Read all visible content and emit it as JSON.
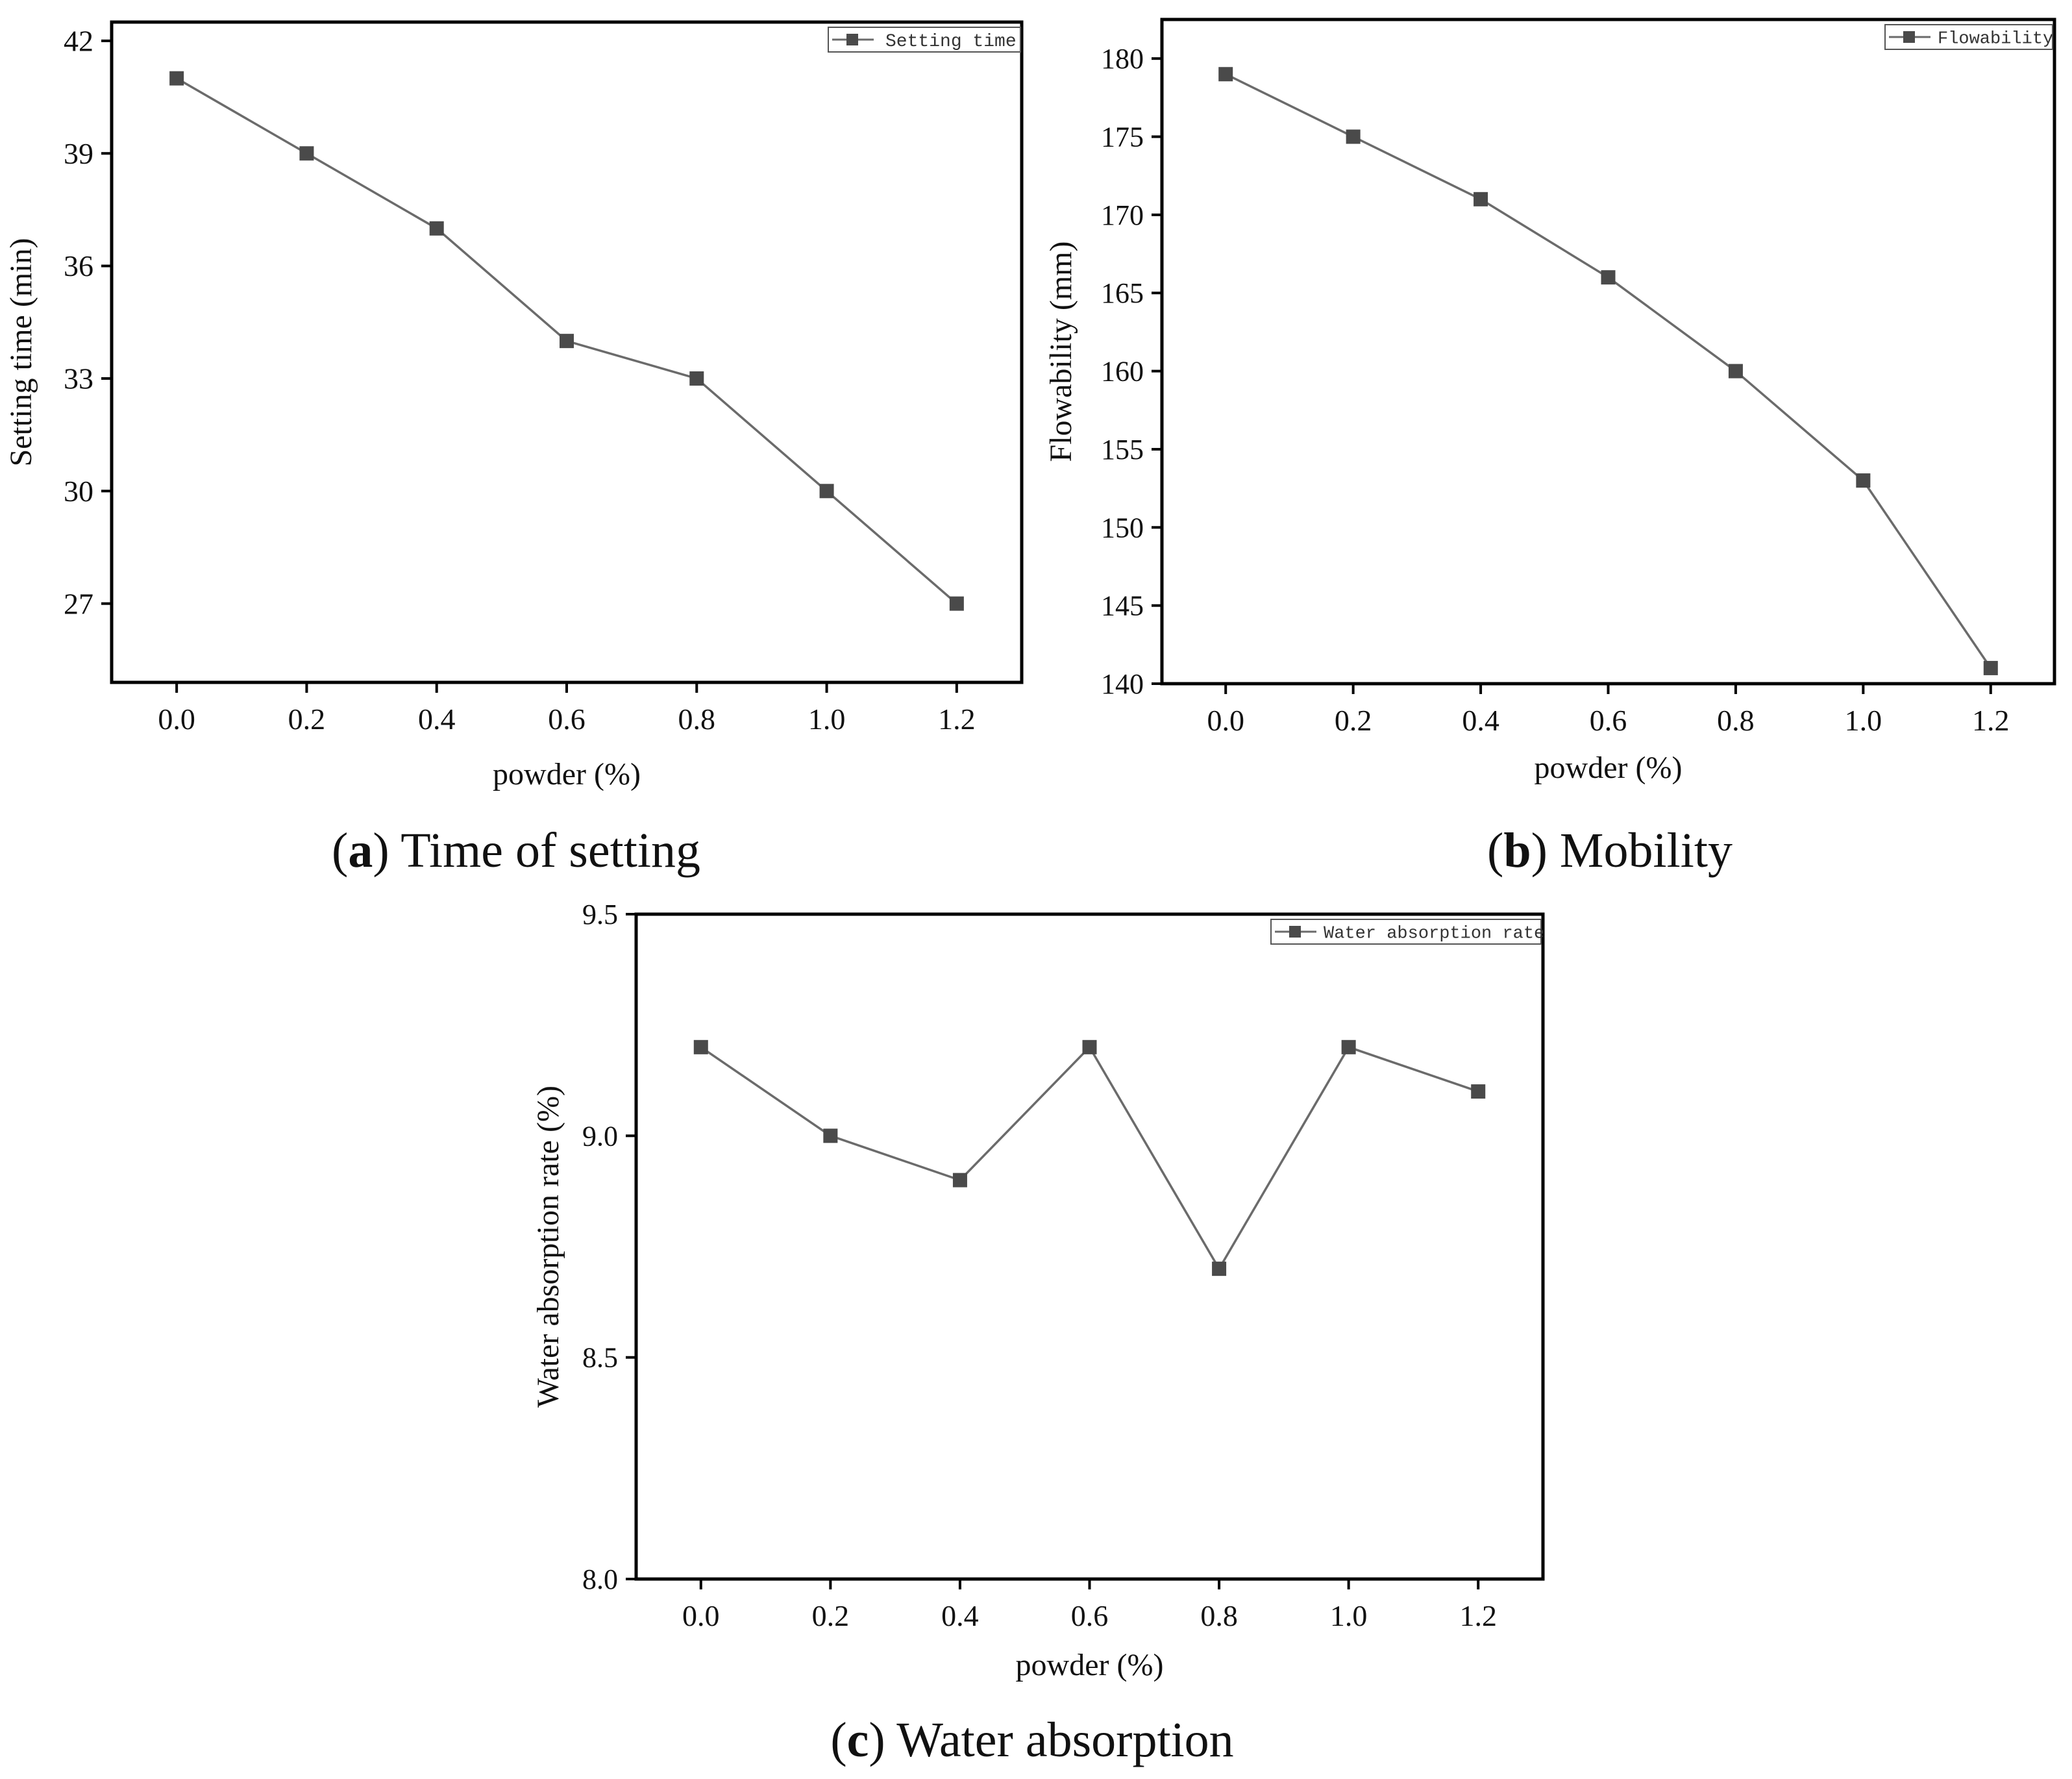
{
  "chart_data": [
    {
      "id": "a",
      "type": "line",
      "caption_letter": "a",
      "caption_text": "Time of setting",
      "xlabel": "powder (%)",
      "ylabel": "Setting time (min)",
      "x": [
        0.0,
        0.2,
        0.4,
        0.6,
        0.8,
        1.0,
        1.2
      ],
      "xticks": [
        "0.0",
        "0.2",
        "0.4",
        "0.6",
        "0.8",
        "1.0",
        "1.2"
      ],
      "xlim": [
        -0.1,
        1.3
      ],
      "ylim": [
        24.9,
        42.5
      ],
      "yticks": [
        27,
        30,
        33,
        36,
        39,
        42
      ],
      "ytick_labels": [
        "27",
        "30",
        "33",
        "36",
        "39",
        "42"
      ],
      "series": [
        {
          "name": "Setting time",
          "values": [
            41,
            39,
            37,
            34,
            33,
            30,
            27
          ]
        }
      ],
      "legend_position": "top-right",
      "grid": false,
      "colors": {
        "line": "#6b6b6b",
        "marker": "#4a4a4a",
        "axis": "#000000"
      }
    },
    {
      "id": "b",
      "type": "line",
      "caption_letter": "b",
      "caption_text": "Mobility",
      "xlabel": "powder (%)",
      "ylabel": "Flowability (mm)",
      "x": [
        0.0,
        0.2,
        0.4,
        0.6,
        0.8,
        1.0,
        1.2
      ],
      "xticks": [
        "0.0",
        "0.2",
        "0.4",
        "0.6",
        "0.8",
        "1.0",
        "1.2"
      ],
      "xlim": [
        -0.1,
        1.3
      ],
      "ylim": [
        140,
        182.5
      ],
      "yticks": [
        140,
        145,
        150,
        155,
        160,
        165,
        170,
        175,
        180
      ],
      "ytick_labels": [
        "140",
        "145",
        "150",
        "155",
        "160",
        "165",
        "170",
        "175",
        "180"
      ],
      "series": [
        {
          "name": "Flowability",
          "values": [
            179,
            175,
            171,
            166,
            160,
            153,
            141
          ]
        }
      ],
      "legend_position": "top-right",
      "grid": false,
      "colors": {
        "line": "#6b6b6b",
        "marker": "#4a4a4a",
        "axis": "#000000"
      }
    },
    {
      "id": "c",
      "type": "line",
      "caption_letter": "c",
      "caption_text": "Water absorption",
      "xlabel": "powder (%)",
      "ylabel": "Water absorption rate (%)",
      "x": [
        0.0,
        0.2,
        0.4,
        0.6,
        0.8,
        1.0,
        1.2
      ],
      "xticks": [
        "0.0",
        "0.2",
        "0.4",
        "0.6",
        "0.8",
        "1.0",
        "1.2"
      ],
      "xlim": [
        -0.1,
        1.3
      ],
      "ylim": [
        8.0,
        9.5
      ],
      "yticks": [
        8.0,
        8.5,
        9.0,
        9.5
      ],
      "ytick_labels": [
        "8.0",
        "8.5",
        "9.0",
        "9.5"
      ],
      "series": [
        {
          "name": "Water absorption rate",
          "values": [
            9.2,
            9.0,
            8.9,
            9.2,
            8.7,
            9.2,
            9.1
          ]
        }
      ],
      "legend_position": "top-right",
      "grid": false,
      "colors": {
        "line": "#6b6b6b",
        "marker": "#4a4a4a",
        "axis": "#000000"
      }
    }
  ]
}
